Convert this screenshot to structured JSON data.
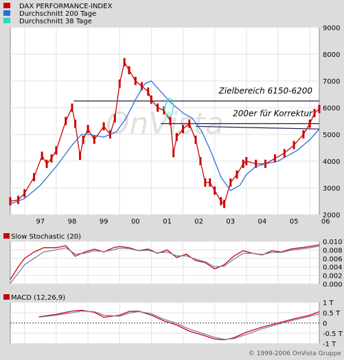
{
  "chart_data": [
    {
      "type": "line",
      "title": "",
      "legend": [
        {
          "name": "DAX PERFORMANCE-INDEX",
          "color": "#cc0000"
        },
        {
          "name": "Durchschnitt 200 Tage",
          "color": "#2a6fd6"
        },
        {
          "name": "Durchschnitt 38 Tage",
          "color": "#33d6c8"
        }
      ],
      "legend_position": "top-left",
      "x_ticks": [
        "97",
        "98",
        "99",
        "00",
        "01",
        "02",
        "03",
        "04",
        "05",
        "06"
      ],
      "x_range": [
        1996.55,
        2006.3
      ],
      "y_ticks": [
        "2000",
        "3000",
        "4000",
        "5000",
        "6000",
        "7000",
        "8000",
        "9000"
      ],
      "ylim": [
        2000,
        9000
      ],
      "grid": true,
      "watermark": "OnVista",
      "series": [
        {
          "name": "DAX PERFORMANCE-INDEX",
          "color": "#cc0000",
          "x": [
            1996.55,
            1996.8,
            1997.0,
            1997.3,
            1997.55,
            1997.7,
            1997.85,
            1998.0,
            1998.3,
            1998.5,
            1998.6,
            1998.75,
            1998.85,
            1999.0,
            1999.2,
            1999.5,
            1999.7,
            1999.85,
            2000.0,
            2000.15,
            2000.3,
            2000.5,
            2000.7,
            2000.9,
            2001.0,
            2001.2,
            2001.4,
            2001.6,
            2001.7,
            2001.8,
            2002.0,
            2002.2,
            2002.4,
            2002.55,
            2002.7,
            2002.85,
            2003.0,
            2003.2,
            2003.3,
            2003.5,
            2003.7,
            2003.9,
            2004.0,
            2004.3,
            2004.6,
            2004.9,
            2005.2,
            2005.5,
            2005.8,
            2006.0,
            2006.15,
            2006.3
          ],
          "y": [
            2500,
            2550,
            2800,
            3400,
            4200,
            3900,
            4100,
            4400,
            5500,
            6000,
            5400,
            4200,
            4800,
            5200,
            4800,
            5300,
            5000,
            5600,
            6900,
            7700,
            7400,
            7000,
            6800,
            6600,
            6300,
            6000,
            5900,
            5500,
            4300,
            4900,
            5200,
            5400,
            4800,
            4000,
            3200,
            3200,
            2900,
            2500,
            2400,
            3200,
            3500,
            3900,
            4000,
            3900,
            3900,
            4100,
            4300,
            4600,
            5000,
            5400,
            5800,
            5950
          ]
        },
        {
          "name": "Durchschnitt 200 Tage",
          "color": "#2a6fd6",
          "x": [
            1996.55,
            1997.0,
            1997.5,
            1998.0,
            1998.5,
            1998.8,
            1999.0,
            1999.5,
            1999.9,
            2000.2,
            2000.5,
            2000.8,
            2001.0,
            2001.3,
            2001.6,
            2002.0,
            2002.3,
            2002.6,
            2002.9,
            2003.2,
            2003.5,
            2003.8,
            2004.0,
            2004.3,
            2004.6,
            2005.0,
            2005.3,
            2005.6,
            2006.0,
            2006.3
          ],
          "y": [
            2400,
            2600,
            3100,
            3800,
            4600,
            5000,
            5000,
            4900,
            5100,
            5600,
            6300,
            6900,
            7000,
            6600,
            6200,
            5800,
            5600,
            5100,
            4300,
            3400,
            2900,
            3100,
            3500,
            3800,
            3900,
            4000,
            4200,
            4400,
            4800,
            5200
          ]
        },
        {
          "name": "Durchschnitt 38 Tage",
          "color": "#33d6c8",
          "x": [
            2001.45,
            2001.55,
            2001.65,
            2001.7,
            2001.65,
            2001.55,
            2001.45,
            2001.4,
            2001.45
          ],
          "y": [
            6100,
            6350,
            6300,
            6050,
            5750,
            5650,
            5800,
            6000,
            6100
          ]
        }
      ],
      "annotations": [
        {
          "text": "Zielbereich 6150-6200",
          "type": "horizontal-line",
          "y": 6250,
          "x_from": 1998.55,
          "x_to": 2006.3
        },
        {
          "text": "200er für Korrektur",
          "type": "horizontal-line",
          "y": 5400,
          "x_from": 2001.3,
          "x_to": 2006.3
        },
        {
          "text": "",
          "type": "trend-line",
          "x_from": 2002.4,
          "y_from": 5300,
          "x_to": 2006.3,
          "y_to": 5200
        }
      ]
    },
    {
      "type": "line",
      "title": "Slow Stochastic (20)",
      "y_ticks": [
        "0.000",
        "0.002",
        "0.004",
        "0.006",
        "0.008",
        "0.010"
      ],
      "ylim": [
        0,
        0.01
      ],
      "x_range": [
        1996.55,
        2006.3
      ],
      "grid": true,
      "series": [
        {
          "name": "",
          "color": "#cc0000",
          "x": [
            1996.55,
            1996.8,
            1997.0,
            1997.3,
            1997.6,
            1998.0,
            1998.3,
            1998.6,
            1998.9,
            1999.2,
            1999.5,
            1999.8,
            2000.0,
            2000.3,
            2000.6,
            2000.9,
            2001.2,
            2001.5,
            2001.8,
            2002.1,
            2002.4,
            2002.7,
            2003.0,
            2003.3,
            2003.6,
            2003.9,
            2004.2,
            2004.5,
            2004.8,
            2005.1,
            2005.4,
            2005.7,
            2006.0,
            2006.3
          ],
          "y": [
            0.001,
            0.004,
            0.006,
            0.0075,
            0.0085,
            0.0085,
            0.009,
            0.0065,
            0.0075,
            0.0082,
            0.0075,
            0.0085,
            0.0088,
            0.0085,
            0.0078,
            0.0082,
            0.0072,
            0.008,
            0.0062,
            0.007,
            0.0055,
            0.005,
            0.0035,
            0.0045,
            0.0065,
            0.0078,
            0.0072,
            0.0068,
            0.0078,
            0.0075,
            0.0082,
            0.0085,
            0.0088,
            0.0092
          ]
        },
        {
          "name": "",
          "color": "#7a7aa8",
          "x": [
            1996.55,
            1996.8,
            1997.0,
            1997.3,
            1997.6,
            1998.0,
            1998.3,
            1998.6,
            1998.9,
            1999.2,
            1999.5,
            1999.8,
            2000.0,
            2000.3,
            2000.6,
            2000.9,
            2001.2,
            2001.5,
            2001.8,
            2002.1,
            2002.4,
            2002.7,
            2003.0,
            2003.3,
            2003.6,
            2003.9,
            2004.2,
            2004.5,
            2004.8,
            2005.1,
            2005.4,
            2005.7,
            2006.0,
            2006.3
          ],
          "y": [
            0.0001,
            0.0025,
            0.0045,
            0.006,
            0.0075,
            0.008,
            0.0085,
            0.007,
            0.0072,
            0.0078,
            0.0076,
            0.008,
            0.0084,
            0.0083,
            0.0078,
            0.0079,
            0.0073,
            0.0075,
            0.0066,
            0.0066,
            0.0058,
            0.0052,
            0.004,
            0.0042,
            0.0058,
            0.0072,
            0.0072,
            0.0069,
            0.0074,
            0.0074,
            0.0079,
            0.0082,
            0.0085,
            0.0089
          ]
        }
      ]
    },
    {
      "type": "line",
      "title": "MACD (12,26,9)",
      "y_ticks": [
        "-1 T",
        "-0.5 T",
        "0",
        "0.5 T",
        "1 T"
      ],
      "ylim": [
        -1,
        1
      ],
      "x_range": [
        1996.55,
        2006.3
      ],
      "grid": true,
      "zero_line": "dotted",
      "series": [
        {
          "name": "",
          "color": "#cc0000",
          "x": [
            1997.45,
            1998.0,
            1998.5,
            1998.8,
            1999.2,
            1999.5,
            2000.0,
            2000.3,
            2000.6,
            2001.0,
            2001.4,
            2001.8,
            2002.2,
            2002.6,
            2003.0,
            2003.3,
            2003.6,
            2004.0,
            2004.5,
            2005.0,
            2005.5,
            2006.0,
            2006.3
          ],
          "y": [
            0.3,
            0.42,
            0.58,
            0.62,
            0.52,
            0.28,
            0.38,
            0.56,
            0.58,
            0.38,
            0.1,
            -0.1,
            -0.4,
            -0.58,
            -0.78,
            -0.82,
            -0.72,
            -0.45,
            -0.2,
            0.0,
            0.2,
            0.38,
            0.55
          ]
        },
        {
          "name": "",
          "color": "#7a7aa8",
          "x": [
            1997.45,
            1998.0,
            1998.5,
            1998.8,
            1999.2,
            1999.5,
            2000.0,
            2000.3,
            2000.6,
            2001.0,
            2001.4,
            2001.8,
            2002.2,
            2002.6,
            2003.0,
            2003.3,
            2003.6,
            2004.0,
            2004.5,
            2005.0,
            2005.5,
            2006.0,
            2006.3
          ],
          "y": [
            0.28,
            0.38,
            0.5,
            0.58,
            0.55,
            0.38,
            0.33,
            0.48,
            0.56,
            0.45,
            0.18,
            -0.02,
            -0.3,
            -0.5,
            -0.7,
            -0.8,
            -0.76,
            -0.56,
            -0.28,
            -0.06,
            0.14,
            0.32,
            0.45
          ]
        }
      ]
    }
  ],
  "footer": {
    "copyright": "© 1999-2006 OnVista Gruppe"
  }
}
